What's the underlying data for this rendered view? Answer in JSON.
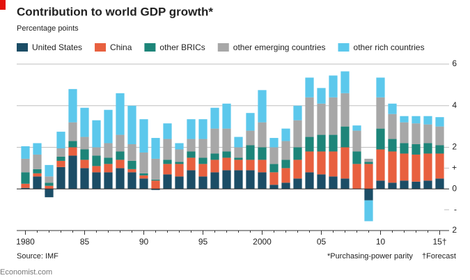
{
  "chart_data": {
    "type": "stacked_bar",
    "title": "Contribution to world GDP growth*",
    "subtitle": "Percentage points",
    "categories": [
      "1980",
      null,
      null,
      null,
      null,
      "85",
      null,
      null,
      null,
      null,
      "90",
      null,
      null,
      null,
      null,
      "95",
      null,
      null,
      null,
      null,
      "2000",
      null,
      null,
      null,
      null,
      "05",
      null,
      null,
      null,
      null,
      "10",
      null,
      null,
      null,
      null,
      "15†"
    ],
    "series": [
      {
        "name": "United States",
        "color": "#1b4d66",
        "values": [
          0.05,
          0.6,
          -0.4,
          1.05,
          1.6,
          1.0,
          0.8,
          0.8,
          1.0,
          0.8,
          0.5,
          -0.05,
          0.7,
          0.6,
          0.9,
          0.6,
          0.8,
          0.9,
          0.9,
          0.9,
          0.8,
          0.2,
          0.3,
          0.5,
          0.8,
          0.7,
          0.6,
          0.5,
          0.0,
          -0.55,
          0.4,
          0.3,
          0.4,
          0.35,
          0.4,
          0.5
        ]
      },
      {
        "name": "China",
        "color": "#e8603f",
        "values": [
          0.2,
          0.15,
          0.15,
          0.3,
          0.4,
          0.4,
          0.3,
          0.4,
          0.4,
          0.15,
          0.15,
          0.4,
          0.5,
          0.6,
          0.6,
          0.6,
          0.6,
          0.6,
          0.5,
          0.5,
          0.6,
          0.6,
          0.7,
          0.9,
          1.0,
          1.1,
          1.2,
          1.5,
          1.2,
          1.2,
          1.5,
          1.5,
          1.3,
          1.3,
          1.3,
          1.2
        ]
      },
      {
        "name": "other BRICs",
        "color": "#1d8579",
        "values": [
          0.55,
          0.2,
          0.15,
          0.2,
          0.3,
          0.5,
          0.5,
          0.3,
          0.4,
          0.4,
          0.1,
          0.05,
          0.2,
          0.1,
          0.3,
          0.3,
          0.3,
          0.3,
          0.1,
          0.7,
          0.6,
          0.4,
          0.4,
          0.6,
          0.7,
          0.8,
          0.8,
          1.0,
          0.6,
          0.1,
          1.0,
          0.6,
          0.5,
          0.5,
          0.5,
          0.4
        ]
      },
      {
        "name": "other emerging countries",
        "color": "#a7a7a7",
        "values": [
          0.65,
          0.7,
          0.3,
          0.4,
          0.9,
          0.6,
          0.4,
          0.7,
          0.8,
          0.8,
          1.0,
          1.0,
          1.0,
          0.6,
          0.6,
          0.9,
          1.2,
          1.1,
          0.5,
          0.7,
          1.2,
          0.8,
          0.9,
          1.3,
          1.9,
          1.5,
          1.8,
          1.6,
          1.0,
          0.15,
          1.5,
          1.2,
          1.0,
          1.0,
          0.9,
          0.9
        ]
      },
      {
        "name": "other rich countries",
        "color": "#5cc8ec",
        "values": [
          0.6,
          0.55,
          0.55,
          0.8,
          1.6,
          1.4,
          1.3,
          1.6,
          2.0,
          1.85,
          1.6,
          1.0,
          0.75,
          0.3,
          0.95,
          0.95,
          1.0,
          1.2,
          0.5,
          0.85,
          1.55,
          0.45,
          0.6,
          0.7,
          0.95,
          0.75,
          1.05,
          1.05,
          0.25,
          -1.0,
          0.95,
          0.5,
          0.3,
          0.35,
          0.4,
          0.45
        ]
      }
    ],
    "ylim": [
      -2,
      6
    ],
    "yticks": [
      6,
      4,
      2,
      {
        "value": 1,
        "label": "+"
      },
      0,
      {
        "value": -1,
        "label": "-"
      },
      {
        "value": -2,
        "label": "2"
      }
    ],
    "grid": true,
    "source": "Source: IMF",
    "notes": [
      "*Purchasing-power parity",
      "†Forecast"
    ],
    "credit": "Economist.com"
  }
}
